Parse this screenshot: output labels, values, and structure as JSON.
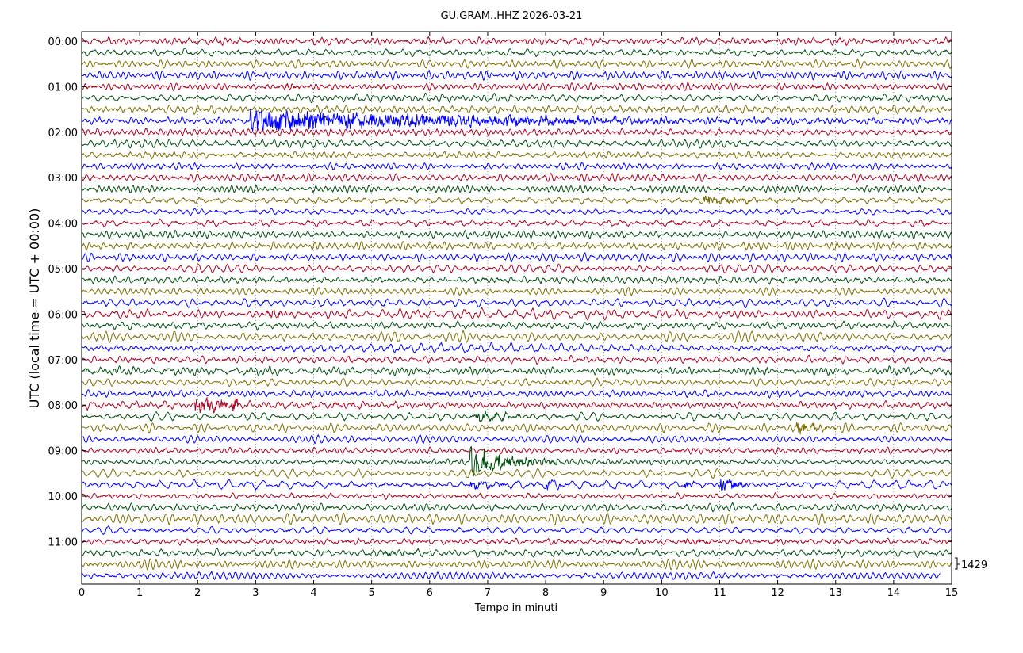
{
  "chart_data": {
    "type": "line",
    "title": "GU.GRAM..HHZ 2026-03-21",
    "xlabel": "Tempo in minuti",
    "ylabel": "UTC (local time = UTC + 00:00)",
    "xlim": [
      0,
      15
    ],
    "x_ticks": [
      "0",
      "1",
      "2",
      "3",
      "4",
      "5",
      "6",
      "7",
      "8",
      "9",
      "10",
      "11",
      "12",
      "13",
      "14",
      "15"
    ],
    "y_ticks": [
      "00:00",
      "01:00",
      "02:00",
      "03:00",
      "04:00",
      "05:00",
      "06:00",
      "07:00",
      "08:00",
      "09:00",
      "10:00",
      "11:00"
    ],
    "trace_minutes": 15,
    "trace_count": 48,
    "trace_colors": [
      "#b0001e",
      "#00500f",
      "#7f6f00",
      "#0000ff"
    ],
    "grid": "vertical dotted at each minute",
    "scale_label": "1429",
    "events": [
      {
        "trace": 7,
        "start": 2.9,
        "end": 15,
        "amp": 3.2,
        "decay": 0.6
      },
      {
        "trace": 4,
        "start": 3.5,
        "end": 4.1,
        "amp": 0.5,
        "decay": 0.3
      },
      {
        "trace": 4,
        "start": 11.7,
        "end": 12.2,
        "amp": 0.5,
        "decay": 0.3
      },
      {
        "trace": 4,
        "start": 12.6,
        "end": 13.0,
        "amp": 0.5,
        "decay": 0.3
      },
      {
        "trace": 14,
        "start": 10.7,
        "end": 12.6,
        "amp": 1.3,
        "decay": 0.5
      },
      {
        "trace": 24,
        "start": 3.2,
        "end": 3.7,
        "amp": 0.9,
        "decay": 0.3
      },
      {
        "trace": 29,
        "start": 0.0,
        "end": 0.6,
        "amp": 0.4,
        "decay": 0.2
      },
      {
        "trace": 29,
        "start": 11.6,
        "end": 12.3,
        "amp": 0.5,
        "decay": 0.3
      },
      {
        "trace": 30,
        "start": 8.3,
        "end": 8.9,
        "amp": 0.4,
        "decay": 0.2
      },
      {
        "trace": 30,
        "start": 13.7,
        "end": 14.3,
        "amp": 0.4,
        "decay": 0.2
      },
      {
        "trace": 32,
        "start": 1.95,
        "end": 2.7,
        "amp": 1.8,
        "decay": 0.1
      },
      {
        "trace": 32,
        "start": 4.3,
        "end": 4.8,
        "amp": 0.5,
        "decay": 0.2
      },
      {
        "trace": 33,
        "start": 6.8,
        "end": 7.6,
        "amp": 1.5,
        "decay": 0.3
      },
      {
        "trace": 34,
        "start": 12.3,
        "end": 13.0,
        "amp": 1.6,
        "decay": 0.3
      },
      {
        "trace": 37,
        "start": 6.7,
        "end": 8.2,
        "amp": 5.0,
        "decay": 0.5
      },
      {
        "trace": 39,
        "start": 6.7,
        "end": 7.3,
        "amp": 1.2,
        "decay": 0.3
      },
      {
        "trace": 39,
        "start": 8.0,
        "end": 8.4,
        "amp": 1.3,
        "decay": 0.3
      },
      {
        "trace": 39,
        "start": 10.4,
        "end": 10.7,
        "amp": 0.9,
        "decay": 0.3
      },
      {
        "trace": 39,
        "start": 11.0,
        "end": 11.5,
        "amp": 2.0,
        "decay": 0.3
      },
      {
        "trace": 44,
        "start": 10.4,
        "end": 10.9,
        "amp": 0.7,
        "decay": 0.3
      },
      {
        "trace": 45,
        "start": 5.2,
        "end": 5.8,
        "amp": 0.8,
        "decay": 0.3
      }
    ]
  }
}
